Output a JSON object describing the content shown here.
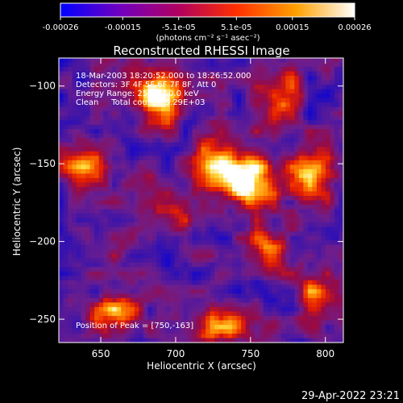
{
  "colorbar": {
    "ticks": [
      "-0.00026",
      "-0.00015",
      "-5.1e-05",
      "5.1e-05",
      "0.00015",
      "0.00026"
    ],
    "tick_values": [
      -0.00026,
      -0.00015,
      -5.1e-05,
      5.1e-05,
      0.00015,
      0.00026
    ],
    "range": [
      -0.00026,
      0.00026
    ],
    "unit_label": "(photons cm⁻² s⁻¹ asec⁻²)",
    "colors": [
      "#0000ff",
      "#7000c0",
      "#b00060",
      "#ff3000",
      "#ffa000",
      "#ffffff"
    ]
  },
  "chart_data": {
    "type": "heatmap",
    "title": "Reconstructed RHESSI Image",
    "xlabel": "Heliocentric X (arcsec)",
    "ylabel": "Heliocentric Y (arcsec)",
    "xlim": [
      622,
      812
    ],
    "ylim": [
      -265,
      -82
    ],
    "xticks": [
      650,
      700,
      750,
      800
    ],
    "yticks": [
      -100,
      -150,
      -200,
      -250
    ],
    "xtick_labels": [
      "650",
      "700",
      "750",
      "800"
    ],
    "ytick_labels": [
      "−100",
      "−150",
      "−200",
      "−250"
    ],
    "annotations": [
      "18-Mar-2003 18:20:52.000 to 18:26:52.000",
      "Detectors: 3F 4F 5F 6F 7F 8F, Att 0",
      "Energy Range: 25.0 - 50.0 keV",
      "Clean     Total counts: 5.29E+03"
    ],
    "peak_label": "Position of Peak = [750,-163]",
    "peak": [
      750,
      -163
    ],
    "bright_sources": [
      {
        "x": 750,
        "y": -163,
        "level": 1.0
      },
      {
        "x": 688,
        "y": -108,
        "level": 0.9
      },
      {
        "x": 730,
        "y": -150,
        "level": 0.75
      },
      {
        "x": 790,
        "y": -160,
        "level": 0.7
      },
      {
        "x": 640,
        "y": -150,
        "level": 0.6
      },
      {
        "x": 660,
        "y": -245,
        "level": 0.55
      },
      {
        "x": 730,
        "y": -255,
        "level": 0.6
      },
      {
        "x": 795,
        "y": -235,
        "level": 0.55
      },
      {
        "x": 770,
        "y": -105,
        "level": 0.45
      },
      {
        "x": 700,
        "y": -185,
        "level": 0.4
      },
      {
        "x": 760,
        "y": -205,
        "level": 0.5
      }
    ]
  },
  "footer": {
    "timestamp": "29-Apr-2022 23:21"
  }
}
